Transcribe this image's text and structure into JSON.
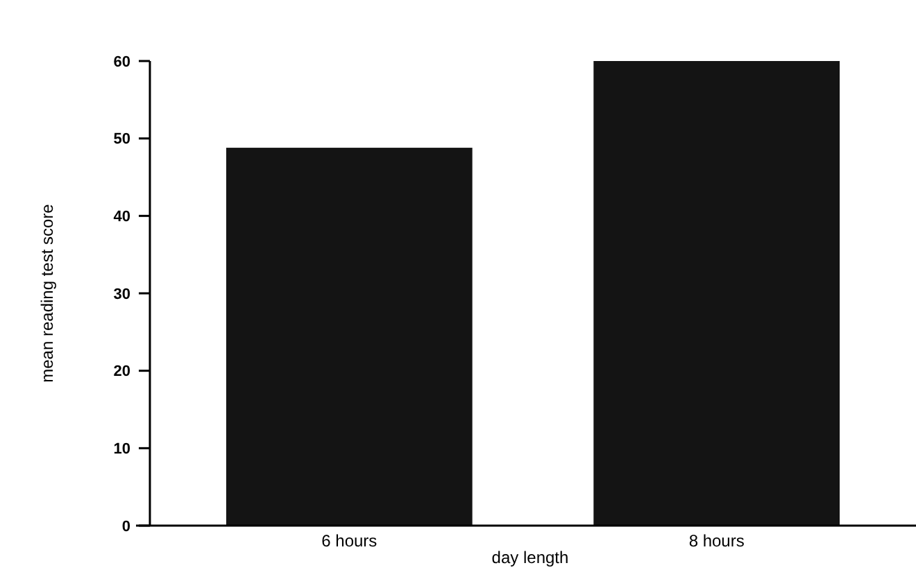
{
  "chart_data": {
    "type": "bar",
    "xlabel": "day length",
    "ylabel": "mean reading test score",
    "categories": [
      "6 hours",
      "8 hours"
    ],
    "values": [
      48.8,
      60
    ],
    "color": "#141414",
    "ylim": [
      0,
      60
    ],
    "yticks": [
      0,
      10,
      20,
      30,
      40,
      50,
      60
    ],
    "grid": false
  }
}
